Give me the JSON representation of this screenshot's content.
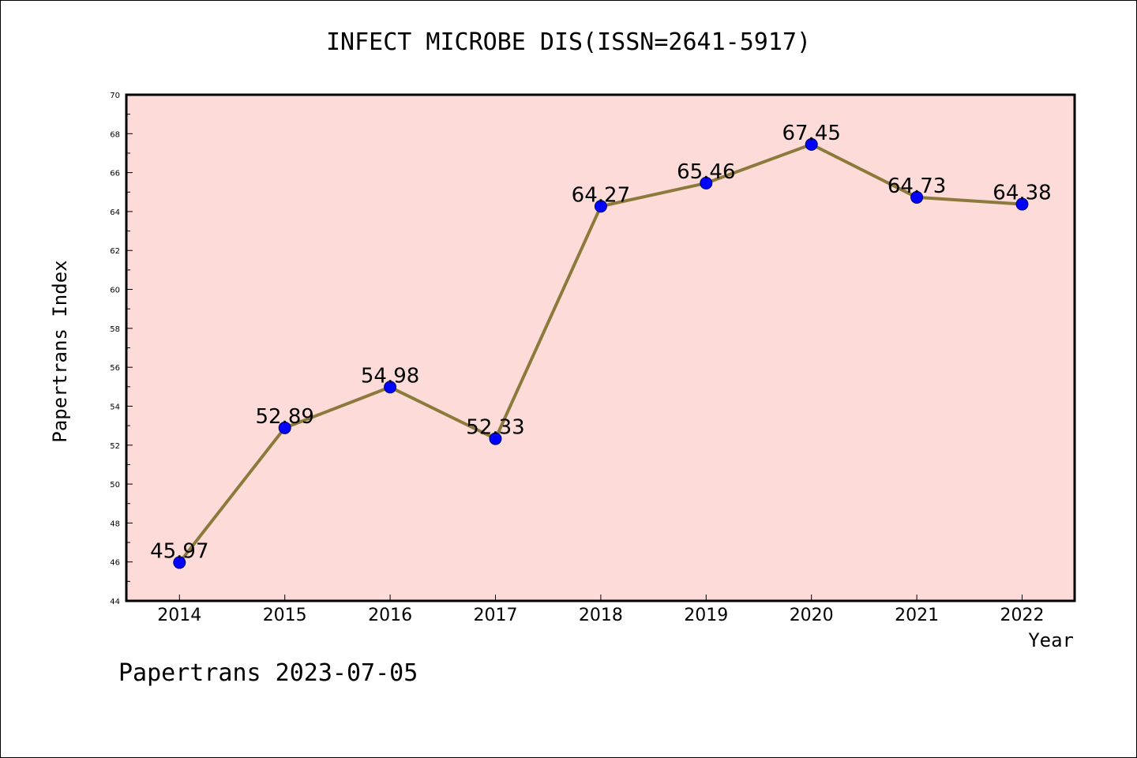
{
  "chart_data": {
    "type": "line",
    "title": "INFECT MICROBE DIS(ISSN=2641-5917)",
    "xlabel": "Year",
    "ylabel": "Papertrans Index",
    "categories": [
      "2014",
      "2015",
      "2016",
      "2017",
      "2018",
      "2019",
      "2020",
      "2021",
      "2022"
    ],
    "values": [
      45.97,
      52.89,
      54.98,
      52.33,
      64.27,
      65.46,
      67.45,
      64.73,
      64.38
    ],
    "value_labels": [
      "45.97",
      "52.89",
      "54.98",
      "52.33",
      "64.27",
      "65.46",
      "67.45",
      "64.73",
      "64.38"
    ],
    "ylim": [
      44,
      70
    ],
    "yticks": [
      44,
      46,
      48,
      50,
      52,
      54,
      56,
      58,
      60,
      62,
      64,
      66,
      68,
      70
    ],
    "grid": false,
    "colors": {
      "plot_background": "#fddbd8",
      "line": "#8c7a3c",
      "marker": "#0000ff"
    }
  },
  "footer": "Papertrans 2023-07-05"
}
